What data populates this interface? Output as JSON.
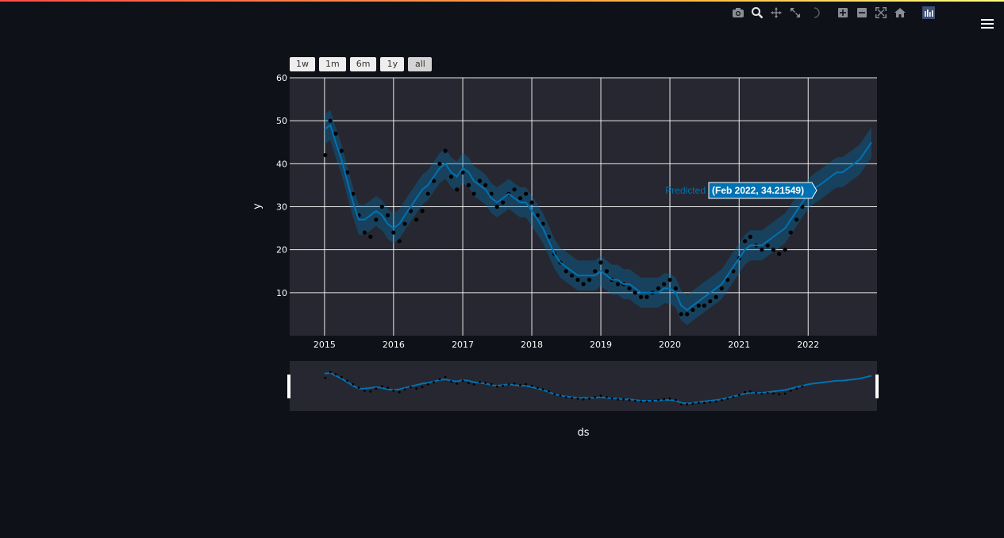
{
  "app": {
    "accent_gradient": [
      "#ff4b4b",
      "#ffbd45",
      "#fffd80"
    ],
    "background": "#0e1117"
  },
  "modebar": [
    {
      "icon": "camera-icon",
      "label": "Download plot as a png"
    },
    {
      "icon": "zoom-icon",
      "label": "Zoom"
    },
    {
      "icon": "pan-icon",
      "label": "Pan"
    },
    {
      "icon": "fullscreen-icon",
      "label": "View fullscreen"
    },
    {
      "icon": "spinner-icon",
      "label": "Loading"
    },
    {
      "icon": "zoom-in-icon",
      "label": "Zoom in"
    },
    {
      "icon": "zoom-out-icon",
      "label": "Zoom out"
    },
    {
      "icon": "autoscale-icon",
      "label": "Autoscale"
    },
    {
      "icon": "home-icon",
      "label": "Reset axes"
    },
    {
      "icon": "plotly-logo-icon",
      "label": "Produced with Plotly"
    }
  ],
  "range_buttons": [
    {
      "label": "1w"
    },
    {
      "label": "1m"
    },
    {
      "label": "6m"
    },
    {
      "label": "1y"
    },
    {
      "label": "all",
      "active": true
    }
  ],
  "tooltip": {
    "series": "Predicted",
    "value": "(Feb 2022, 34.21549)"
  },
  "chart_data": {
    "type": "line",
    "xlabel": "ds",
    "ylabel": "y",
    "xlim": [
      "2014-07-01",
      "2022-12-31"
    ],
    "ylim": [
      0,
      60
    ],
    "x_ticks": [
      "2015",
      "2016",
      "2017",
      "2018",
      "2019",
      "2020",
      "2021",
      "2022"
    ],
    "y_ticks": [
      10,
      20,
      30,
      40,
      50,
      60
    ],
    "grid": true,
    "colors": {
      "actual": "#000000",
      "predicted": "#0072B2",
      "band": "#0072B2",
      "plot_bg": "#262730"
    },
    "actual": {
      "x": [
        "2015-01-05",
        "2015-02-01",
        "2015-03-01",
        "2015-04-01",
        "2015-05-01",
        "2015-06-01",
        "2015-07-01",
        "2015-08-01",
        "2015-09-01",
        "2015-10-01",
        "2015-11-01",
        "2015-12-01",
        "2016-01-01",
        "2016-02-01",
        "2016-03-01",
        "2016-04-01",
        "2016-05-01",
        "2016-06-01",
        "2016-07-01",
        "2016-08-01",
        "2016-09-01",
        "2016-10-01",
        "2016-11-01",
        "2016-12-01",
        "2017-01-01",
        "2017-02-01",
        "2017-03-01",
        "2017-04-01",
        "2017-05-01",
        "2017-06-01",
        "2017-07-01",
        "2017-08-01",
        "2017-09-01",
        "2017-10-01",
        "2017-11-01",
        "2017-12-01",
        "2018-01-01",
        "2018-02-01",
        "2018-03-01",
        "2018-04-01",
        "2018-05-01",
        "2018-06-01",
        "2018-07-01",
        "2018-08-01",
        "2018-09-01",
        "2018-10-01",
        "2018-11-01",
        "2018-12-01",
        "2019-01-01",
        "2019-02-01",
        "2019-03-01",
        "2019-04-01",
        "2019-05-01",
        "2019-06-01",
        "2019-07-01",
        "2019-08-01",
        "2019-09-01",
        "2019-10-01",
        "2019-11-01",
        "2019-12-01",
        "2020-01-01",
        "2020-02-01",
        "2020-03-01",
        "2020-04-01",
        "2020-05-01",
        "2020-06-01",
        "2020-07-01",
        "2020-08-01",
        "2020-09-01",
        "2020-10-01",
        "2020-11-01",
        "2020-12-01",
        "2021-01-01",
        "2021-02-01",
        "2021-03-01",
        "2021-04-01",
        "2021-05-01",
        "2021-06-01",
        "2021-07-01",
        "2021-08-01",
        "2021-09-01",
        "2021-10-01",
        "2021-11-01",
        "2021-12-01"
      ],
      "y": [
        42,
        50,
        47,
        43,
        38,
        33,
        28,
        24,
        23,
        27,
        30,
        28,
        24,
        22,
        26,
        29,
        27,
        29,
        33,
        36,
        40,
        43,
        37,
        34,
        38,
        35,
        33,
        36,
        35,
        33,
        30,
        31,
        33,
        34,
        32,
        33,
        31,
        28,
        26,
        23,
        19,
        17,
        15,
        14,
        13,
        12,
        13,
        15,
        17,
        15,
        13,
        12,
        12,
        11,
        10,
        9,
        9,
        10,
        11,
        12,
        13,
        11,
        5,
        5,
        6,
        7,
        7,
        8,
        9,
        11,
        13,
        15,
        18,
        22,
        23,
        21,
        20,
        21,
        20,
        19,
        20,
        24,
        27,
        30
      ]
    },
    "predicted": {
      "x": [
        "2015-01-01",
        "2015-02-01",
        "2015-03-01",
        "2015-04-01",
        "2015-05-01",
        "2015-06-01",
        "2015-07-01",
        "2015-08-01",
        "2015-09-01",
        "2015-10-01",
        "2015-11-01",
        "2015-12-01",
        "2016-01-01",
        "2016-02-01",
        "2016-03-01",
        "2016-04-01",
        "2016-05-01",
        "2016-06-01",
        "2016-07-01",
        "2016-08-01",
        "2016-09-01",
        "2016-10-01",
        "2016-11-01",
        "2016-12-01",
        "2017-01-01",
        "2017-02-01",
        "2017-03-01",
        "2017-04-01",
        "2017-05-01",
        "2017-06-01",
        "2017-07-01",
        "2017-08-01",
        "2017-09-01",
        "2017-10-01",
        "2017-11-01",
        "2017-12-01",
        "2018-01-01",
        "2018-02-01",
        "2018-03-01",
        "2018-04-01",
        "2018-05-01",
        "2018-06-01",
        "2018-07-01",
        "2018-08-01",
        "2018-09-01",
        "2018-10-01",
        "2018-11-01",
        "2018-12-01",
        "2019-01-01",
        "2019-02-01",
        "2019-03-01",
        "2019-04-01",
        "2019-05-01",
        "2019-06-01",
        "2019-07-01",
        "2019-08-01",
        "2019-09-01",
        "2019-10-01",
        "2019-11-01",
        "2019-12-01",
        "2020-01-01",
        "2020-02-01",
        "2020-03-01",
        "2020-04-01",
        "2020-05-01",
        "2020-06-01",
        "2020-07-01",
        "2020-08-01",
        "2020-09-01",
        "2020-10-01",
        "2020-11-01",
        "2020-12-01",
        "2021-01-01",
        "2021-02-01",
        "2021-03-01",
        "2021-04-01",
        "2021-05-01",
        "2021-06-01",
        "2021-07-01",
        "2021-08-01",
        "2021-09-01",
        "2021-10-01",
        "2021-11-01",
        "2021-12-01",
        "2022-01-01",
        "2022-02-01",
        "2022-03-01",
        "2022-04-01",
        "2022-05-01",
        "2022-06-01",
        "2022-07-01",
        "2022-08-01",
        "2022-09-01",
        "2022-10-01",
        "2022-11-01",
        "2022-12-01"
      ],
      "y": [
        48,
        49,
        45,
        41,
        36,
        31,
        27,
        27,
        28,
        29,
        28,
        26,
        25,
        26,
        28,
        30,
        32,
        34,
        35,
        37,
        39,
        40,
        38,
        37,
        39,
        38,
        36,
        35,
        34,
        32,
        31,
        32,
        33,
        32,
        31,
        31,
        29,
        27,
        25,
        22,
        19,
        17,
        16,
        15,
        14,
        14,
        14,
        14,
        15,
        14,
        13,
        13,
        12,
        12,
        11,
        10,
        10,
        10,
        10,
        11,
        11,
        10,
        7,
        6,
        7,
        8,
        9,
        10,
        11,
        12,
        14,
        16,
        18,
        20,
        21,
        21,
        21,
        22,
        23,
        24,
        25,
        27,
        29,
        31,
        33,
        34.21549,
        35,
        36,
        37,
        38,
        38,
        39,
        40,
        41,
        43,
        45
      ]
    },
    "band_width": 3.5
  }
}
